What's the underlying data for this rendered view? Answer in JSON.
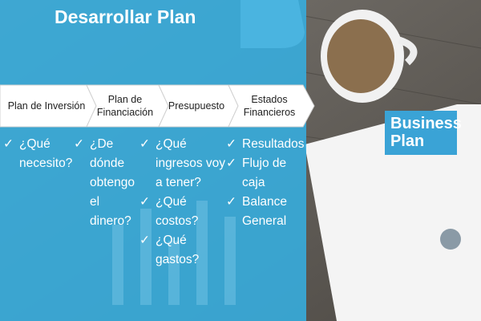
{
  "title": "Desarrollar Plan",
  "steps": [
    {
      "label": "Plan de Inversión",
      "items": [
        "¿Qué necesito?"
      ]
    },
    {
      "label": "Plan de Financiación",
      "items": [
        "¿De dónde obtengo el dinero?"
      ]
    },
    {
      "label": "Presupuesto",
      "items": [
        "¿Qué ingresos voy a tener?",
        "¿Qué costos?",
        "¿Qué gastos?"
      ]
    },
    {
      "label": "Estados Financieros",
      "items": [
        "Resultados",
        "Flujo de caja",
        "Balance General"
      ]
    }
  ],
  "photo": {
    "paper_title": [
      "Business",
      "Plan"
    ]
  }
}
